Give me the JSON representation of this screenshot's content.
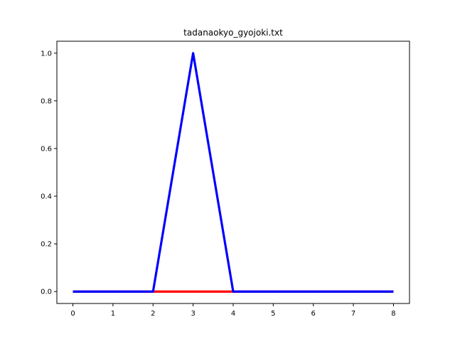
{
  "chart_data": {
    "type": "line",
    "title": "tadanaokyo_gyojoki.txt",
    "xlabel": "",
    "ylabel": "",
    "xlim": [
      -0.4,
      8.4
    ],
    "ylim": [
      -0.05,
      1.05
    ],
    "xticks": [
      0,
      1,
      2,
      3,
      4,
      5,
      6,
      7,
      8
    ],
    "xtick_labels": [
      "0",
      "1",
      "2",
      "3",
      "4",
      "5",
      "6",
      "7",
      "8"
    ],
    "yticks": [
      0.0,
      0.2,
      0.4,
      0.6,
      0.8,
      1.0
    ],
    "ytick_labels": [
      "0.0",
      "0.2",
      "0.4",
      "0.6",
      "0.8",
      "1.0"
    ],
    "grid": false,
    "series": [
      {
        "color": "#ff0000",
        "x": [
          0,
          1,
          2,
          3,
          4,
          5,
          6,
          7,
          8
        ],
        "y": [
          0,
          0,
          0,
          0,
          0,
          0,
          0,
          0,
          0
        ]
      },
      {
        "color": "#0000ff",
        "x": [
          0,
          1,
          2,
          3,
          4,
          5,
          6,
          7,
          8
        ],
        "y": [
          0,
          0,
          0,
          1,
          0,
          0,
          0,
          0,
          0
        ]
      }
    ]
  }
}
